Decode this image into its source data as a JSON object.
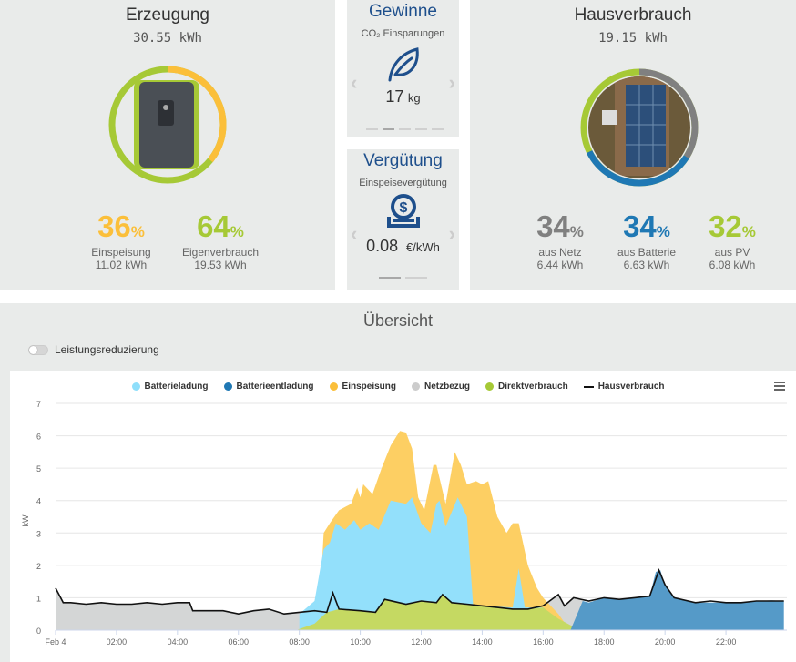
{
  "erzeugung": {
    "title": "Erzeugung",
    "total": "30.55 kWh",
    "einspeisung": {
      "pct": "36",
      "unit": "%",
      "label": "Einspeisung",
      "value": "11.02 kWh"
    },
    "eigenverbrauch": {
      "pct": "64",
      "unit": "%",
      "label": "Eigenverbrauch",
      "value": "19.53 kWh"
    }
  },
  "gewinne": {
    "title": "Gewinne",
    "subtitle": "CO₂ Einsparungen",
    "value": "17",
    "unit": "kg",
    "icon": "leaf-icon"
  },
  "verguetung": {
    "title": "Vergütung",
    "subtitle": "Einspeisevergütung",
    "value": "0.08",
    "unit": "€/kWh",
    "icon": "money-icon"
  },
  "hausverbrauch": {
    "title": "Hausverbrauch",
    "total": "19.15 kWh",
    "netz": {
      "pct": "34",
      "unit": "%",
      "label": "aus Netz",
      "value": "6.44 kWh"
    },
    "batterie": {
      "pct": "34",
      "unit": "%",
      "label": "aus Batterie",
      "value": "6.63 kWh"
    },
    "pv": {
      "pct": "32",
      "unit": "%",
      "label": "aus PV",
      "value": "6.08 kWh"
    }
  },
  "overview": {
    "title": "Übersicht",
    "toggle_label": "Leistungsreduzierung",
    "toggle_on": false
  },
  "colors": {
    "yellow": "#fbbf3a",
    "green": "#a6c936",
    "grey": "#808080",
    "blue": "#1f78b4",
    "lightblue": "#8fdffb",
    "title_blue": "#1e4f8c"
  },
  "chart_data": {
    "type": "area",
    "ylabel": "kW",
    "ylim": [
      0,
      7
    ],
    "yticks": [
      "0",
      "1",
      "2",
      "3",
      "4",
      "5",
      "6",
      "7"
    ],
    "xlim": [
      0,
      24
    ],
    "xticks": [
      {
        "t": 0,
        "label": "Feb 4"
      },
      {
        "t": 2,
        "label": "02:00"
      },
      {
        "t": 4,
        "label": "04:00"
      },
      {
        "t": 6,
        "label": "06:00"
      },
      {
        "t": 8,
        "label": "08:00"
      },
      {
        "t": 10,
        "label": "10:00"
      },
      {
        "t": 12,
        "label": "12:00"
      },
      {
        "t": 14,
        "label": "14:00"
      },
      {
        "t": 16,
        "label": "16:00"
      },
      {
        "t": 18,
        "label": "18:00"
      },
      {
        "t": 20,
        "label": "20:00"
      },
      {
        "t": 22,
        "label": "22:00"
      }
    ],
    "legend": [
      {
        "name": "Batterieladung",
        "color": "#8fdffb",
        "kind": "dot"
      },
      {
        "name": "Batterieentladung",
        "color": "#1f78b4",
        "kind": "dot"
      },
      {
        "name": "Einspeisung",
        "color": "#fbbf3a",
        "kind": "dot"
      },
      {
        "name": "Netzbezug",
        "color": "#cccccc",
        "kind": "dot"
      },
      {
        "name": "Direktverbrauch",
        "color": "#a6c936",
        "kind": "dot"
      },
      {
        "name": "Hausverbrauch",
        "color": "#111111",
        "kind": "line"
      }
    ],
    "series": {
      "Netzbezug": [
        [
          0,
          1.3
        ],
        [
          0.25,
          0.85
        ],
        [
          0.5,
          0.85
        ],
        [
          1,
          0.8
        ],
        [
          1.5,
          0.85
        ],
        [
          2,
          0.8
        ],
        [
          2.5,
          0.8
        ],
        [
          3,
          0.85
        ],
        [
          3.5,
          0.8
        ],
        [
          4,
          0.85
        ],
        [
          4.4,
          0.85
        ],
        [
          4.5,
          0.6
        ],
        [
          5,
          0.6
        ],
        [
          5.5,
          0.6
        ],
        [
          6,
          0.5
        ],
        [
          6.5,
          0.6
        ],
        [
          7,
          0.65
        ],
        [
          7.5,
          0.5
        ],
        [
          8,
          0.55
        ],
        [
          8.5,
          0.6
        ],
        [
          8.7,
          0
        ],
        [
          15.6,
          0
        ],
        [
          16,
          0.75
        ],
        [
          16.5,
          1.1
        ],
        [
          16.7,
          0.75
        ],
        [
          17,
          1.0
        ],
        [
          17.3,
          0.9
        ],
        [
          17.4,
          0
        ]
      ],
      "Einspeisung": [
        [
          8,
          0
        ],
        [
          8.2,
          0.3
        ],
        [
          8.7,
          1.3
        ],
        [
          8.8,
          3.0
        ],
        [
          9,
          3.3
        ],
        [
          9.3,
          3.7
        ],
        [
          9.7,
          3.9
        ],
        [
          9.9,
          4.4
        ],
        [
          10,
          4.1
        ],
        [
          10.1,
          4.5
        ],
        [
          10.4,
          4.2
        ],
        [
          10.7,
          5.0
        ],
        [
          11,
          5.7
        ],
        [
          11.3,
          6.15
        ],
        [
          11.5,
          6.1
        ],
        [
          11.7,
          5.6
        ],
        [
          11.9,
          4.1
        ],
        [
          12.1,
          3.7
        ],
        [
          12.4,
          5.1
        ],
        [
          12.5,
          5.1
        ],
        [
          12.8,
          3.9
        ],
        [
          13.1,
          5.5
        ],
        [
          13.3,
          5.1
        ],
        [
          13.5,
          4.5
        ],
        [
          13.8,
          4.6
        ],
        [
          14,
          4.5
        ],
        [
          14.2,
          4.6
        ],
        [
          14.5,
          3.5
        ],
        [
          14.8,
          3.0
        ],
        [
          15,
          3.3
        ],
        [
          15.2,
          3.3
        ],
        [
          15.5,
          2.0
        ],
        [
          15.8,
          1.3
        ],
        [
          16,
          1.0
        ],
        [
          16.5,
          0.5
        ],
        [
          16.8,
          0.1
        ],
        [
          17.5,
          0
        ]
      ],
      "Batterieladung": [
        [
          8,
          0.5
        ],
        [
          8.5,
          0.9
        ],
        [
          8.8,
          2.5
        ],
        [
          9,
          2.7
        ],
        [
          9.2,
          3.3
        ],
        [
          9.5,
          3.1
        ],
        [
          9.8,
          3.4
        ],
        [
          10,
          3.1
        ],
        [
          10.3,
          3.3
        ],
        [
          10.6,
          3.1
        ],
        [
          11,
          4.0
        ],
        [
          11.5,
          3.9
        ],
        [
          11.7,
          4.1
        ],
        [
          12,
          3.3
        ],
        [
          12.3,
          3.0
        ],
        [
          12.5,
          3.9
        ],
        [
          12.6,
          4.0
        ],
        [
          12.8,
          3.2
        ],
        [
          13.2,
          4.1
        ],
        [
          13.5,
          3.5
        ],
        [
          13.7,
          0.8
        ],
        [
          14,
          0.75
        ],
        [
          15,
          0.7
        ],
        [
          15.2,
          1.9
        ],
        [
          15.4,
          0.7
        ],
        [
          16,
          0.7
        ],
        [
          16.5,
          0.3
        ],
        [
          17,
          0.1
        ],
        [
          17.3,
          0
        ]
      ],
      "Direktverbrauch": [
        [
          7.9,
          0
        ],
        [
          8.5,
          0.2
        ],
        [
          8.9,
          0.55
        ],
        [
          9.1,
          0.6
        ],
        [
          9.3,
          0.65
        ],
        [
          10,
          0.6
        ],
        [
          10.5,
          0.55
        ],
        [
          10.8,
          0.95
        ],
        [
          11.5,
          0.8
        ],
        [
          12,
          0.9
        ],
        [
          12.5,
          0.85
        ],
        [
          12.7,
          1.1
        ],
        [
          13,
          0.85
        ],
        [
          13.5,
          0.8
        ],
        [
          14,
          0.75
        ],
        [
          14.5,
          0.7
        ],
        [
          15,
          0.65
        ],
        [
          15.5,
          0.65
        ],
        [
          16,
          0.7
        ],
        [
          16.5,
          0.35
        ],
        [
          17,
          0.1
        ],
        [
          18,
          0.02
        ],
        [
          18.5,
          0
        ]
      ],
      "Batterieentladung": [
        [
          16.9,
          0
        ],
        [
          17.3,
          0.9
        ],
        [
          17.5,
          0.85
        ],
        [
          18,
          1.0
        ],
        [
          18.5,
          0.95
        ],
        [
          19,
          1.0
        ],
        [
          19.5,
          1.05
        ],
        [
          19.7,
          1.8
        ],
        [
          19.85,
          1.85
        ],
        [
          20,
          1.4
        ],
        [
          20.3,
          1.0
        ],
        [
          21,
          0.85
        ],
        [
          21.5,
          0.85
        ],
        [
          22,
          0.85
        ],
        [
          22.5,
          0.85
        ],
        [
          23,
          0.9
        ],
        [
          23.5,
          0.92
        ],
        [
          23.9,
          0.9
        ],
        [
          23.9,
          0
        ]
      ],
      "Hausverbrauch": [
        [
          0,
          1.3
        ],
        [
          0.25,
          0.85
        ],
        [
          0.5,
          0.85
        ],
        [
          1,
          0.8
        ],
        [
          1.5,
          0.85
        ],
        [
          2,
          0.8
        ],
        [
          2.5,
          0.8
        ],
        [
          3,
          0.85
        ],
        [
          3.5,
          0.8
        ],
        [
          4,
          0.85
        ],
        [
          4.4,
          0.85
        ],
        [
          4.5,
          0.6
        ],
        [
          5,
          0.6
        ],
        [
          5.5,
          0.6
        ],
        [
          6,
          0.5
        ],
        [
          6.5,
          0.6
        ],
        [
          7,
          0.65
        ],
        [
          7.5,
          0.5
        ],
        [
          8,
          0.55
        ],
        [
          8.5,
          0.6
        ],
        [
          8.9,
          0.55
        ],
        [
          9.1,
          1.15
        ],
        [
          9.3,
          0.65
        ],
        [
          10,
          0.6
        ],
        [
          10.5,
          0.55
        ],
        [
          10.8,
          0.95
        ],
        [
          11.5,
          0.8
        ],
        [
          12,
          0.9
        ],
        [
          12.5,
          0.85
        ],
        [
          12.7,
          1.1
        ],
        [
          13,
          0.85
        ],
        [
          13.5,
          0.8
        ],
        [
          14,
          0.75
        ],
        [
          14.5,
          0.7
        ],
        [
          15,
          0.65
        ],
        [
          15.5,
          0.65
        ],
        [
          16,
          0.75
        ],
        [
          16.5,
          1.1
        ],
        [
          16.7,
          0.75
        ],
        [
          17,
          1.0
        ],
        [
          17.5,
          0.9
        ],
        [
          18,
          1.0
        ],
        [
          18.5,
          0.95
        ],
        [
          19,
          1.0
        ],
        [
          19.5,
          1.05
        ],
        [
          19.8,
          1.85
        ],
        [
          20,
          1.4
        ],
        [
          20.3,
          1.0
        ],
        [
          21,
          0.85
        ],
        [
          21.5,
          0.9
        ],
        [
          22,
          0.85
        ],
        [
          22.5,
          0.85
        ],
        [
          23,
          0.9
        ],
        [
          23.5,
          0.9
        ],
        [
          23.9,
          0.9
        ]
      ]
    }
  }
}
